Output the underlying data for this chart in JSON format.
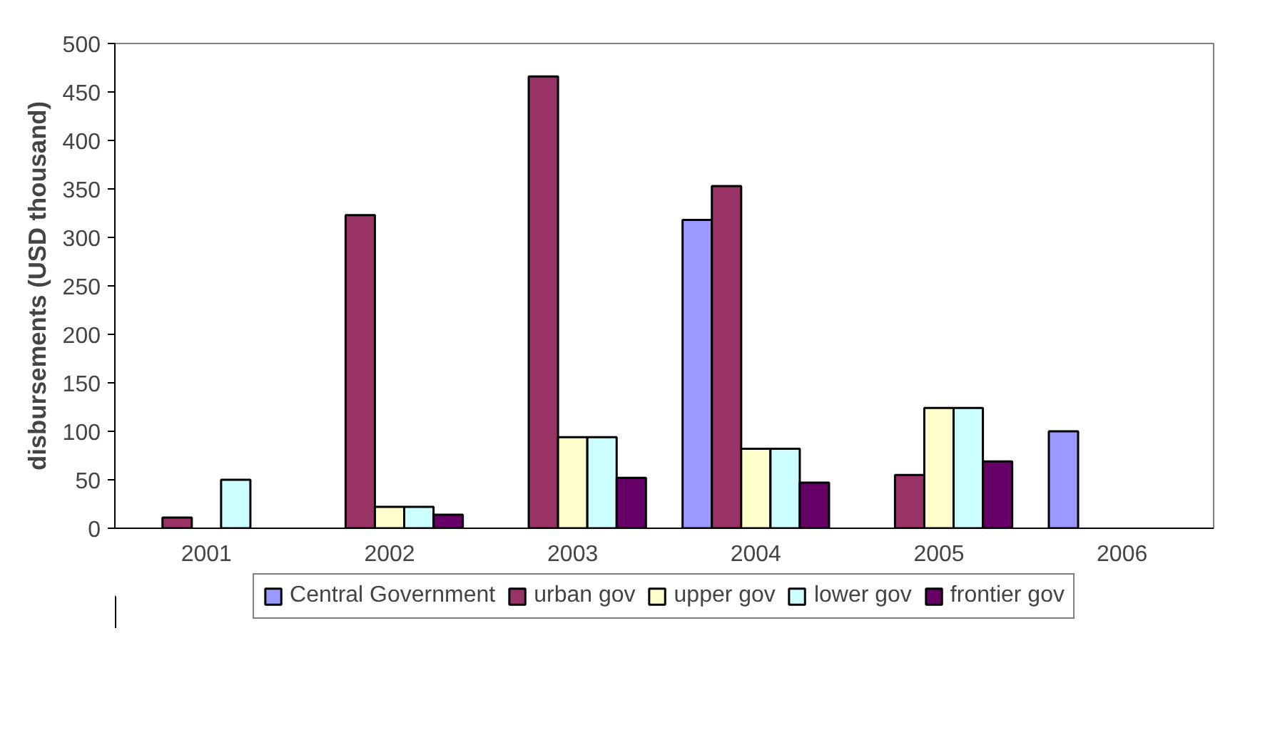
{
  "chart_data": {
    "type": "bar",
    "ylabel": "disbursements (USD thousand)",
    "categories": [
      "2001",
      "2002",
      "2003",
      "2004",
      "2005",
      "2006"
    ],
    "series": [
      {
        "name": "Central Government",
        "color": "#9999ff",
        "values": [
          null,
          null,
          null,
          318,
          null,
          100
        ]
      },
      {
        "name": "urban gov",
        "color": "#993366",
        "values": [
          11,
          323,
          466,
          353,
          55,
          null
        ]
      },
      {
        "name": "upper gov",
        "color": "#ffffcc",
        "values": [
          null,
          22,
          94,
          82,
          124,
          null
        ]
      },
      {
        "name": "lower gov",
        "color": "#ccffff",
        "values": [
          50,
          22,
          94,
          82,
          124,
          null
        ]
      },
      {
        "name": "frontier gov",
        "color": "#660066",
        "values": [
          null,
          14,
          52,
          47,
          69,
          null
        ]
      }
    ],
    "ylim": [
      0,
      500
    ],
    "yticks": [
      0,
      50,
      100,
      150,
      200,
      250,
      300,
      350,
      400,
      450,
      500
    ],
    "grid": false,
    "legend": "bottom"
  }
}
